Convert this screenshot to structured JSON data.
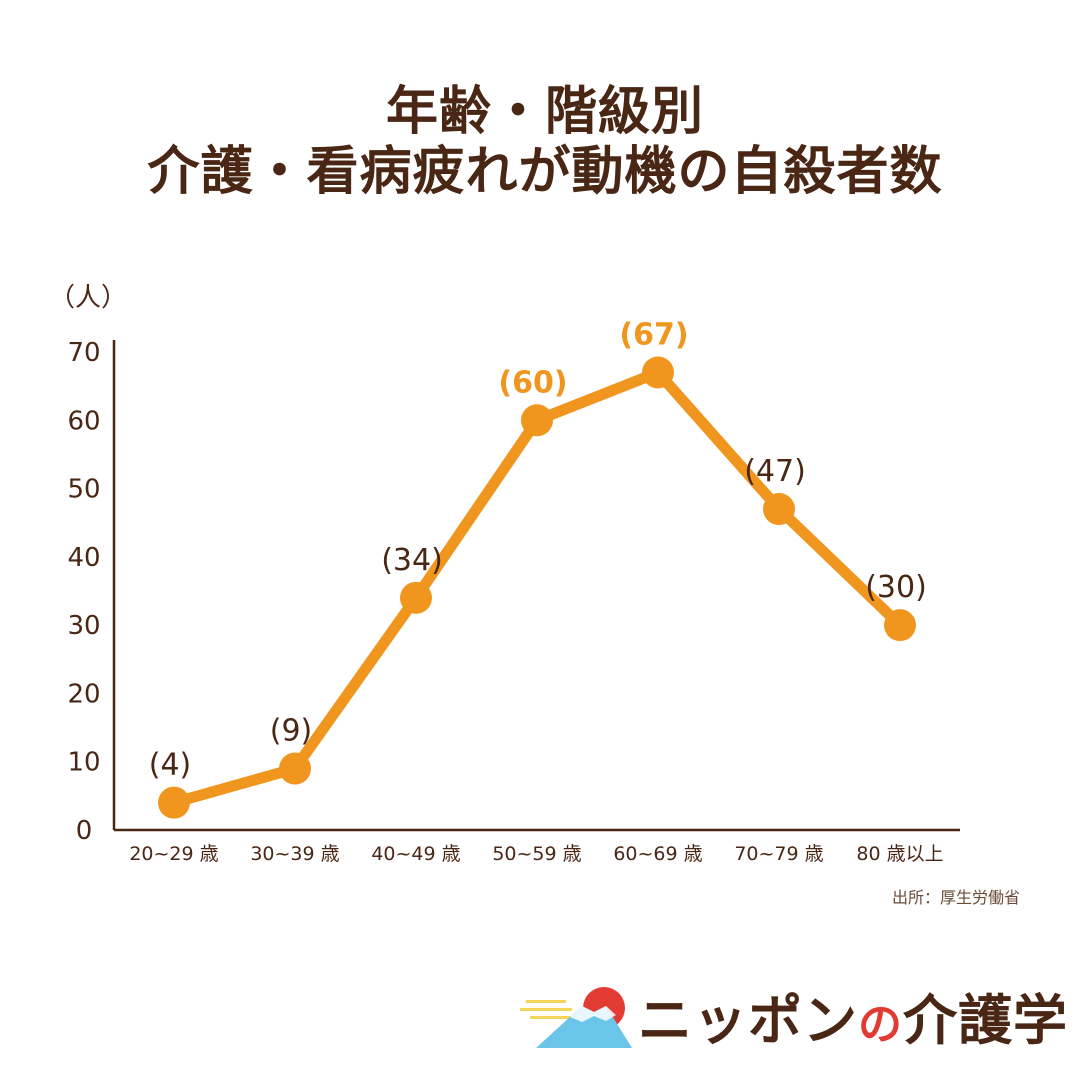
{
  "header": {
    "title_line1": "年齢・階級別",
    "title_line2": "介護・看病疲れが動機の自殺者数"
  },
  "chart_data": {
    "type": "line",
    "title": "年齢・階級別 介護・看病疲れが動機の自殺者数",
    "ylabel": "（人）",
    "xlabel": "",
    "ylim": [
      0,
      70
    ],
    "yticks": [
      0,
      10,
      20,
      30,
      40,
      50,
      60,
      70
    ],
    "grid": false,
    "categories": [
      "20~29 歳",
      "30~39 歳",
      "40~49 歳",
      "50~59 歳",
      "60~69 歳",
      "70~79 歳",
      "80 歳以上"
    ],
    "values": [
      4,
      9,
      34,
      60,
      67,
      47,
      30
    ],
    "data_labels": [
      "(4)",
      "(9)",
      "(34)",
      "(60)",
      "(67)",
      "(47)",
      "(30)"
    ],
    "highlighted": [
      false,
      false,
      false,
      true,
      true,
      false,
      false
    ],
    "line_color": "#f0961e",
    "label_color": "#4a2614",
    "highlight_label_color": "#f0961e",
    "axis_color": "#4a2614"
  },
  "source": "出所：厚生労働省",
  "logo": {
    "text_before": "ニッポン",
    "text_no": "の",
    "text_after": "介護学",
    "sun_color": "#e23b33",
    "mountain_color": "#6bc5e8",
    "cloud_color": "#f2d65a"
  }
}
